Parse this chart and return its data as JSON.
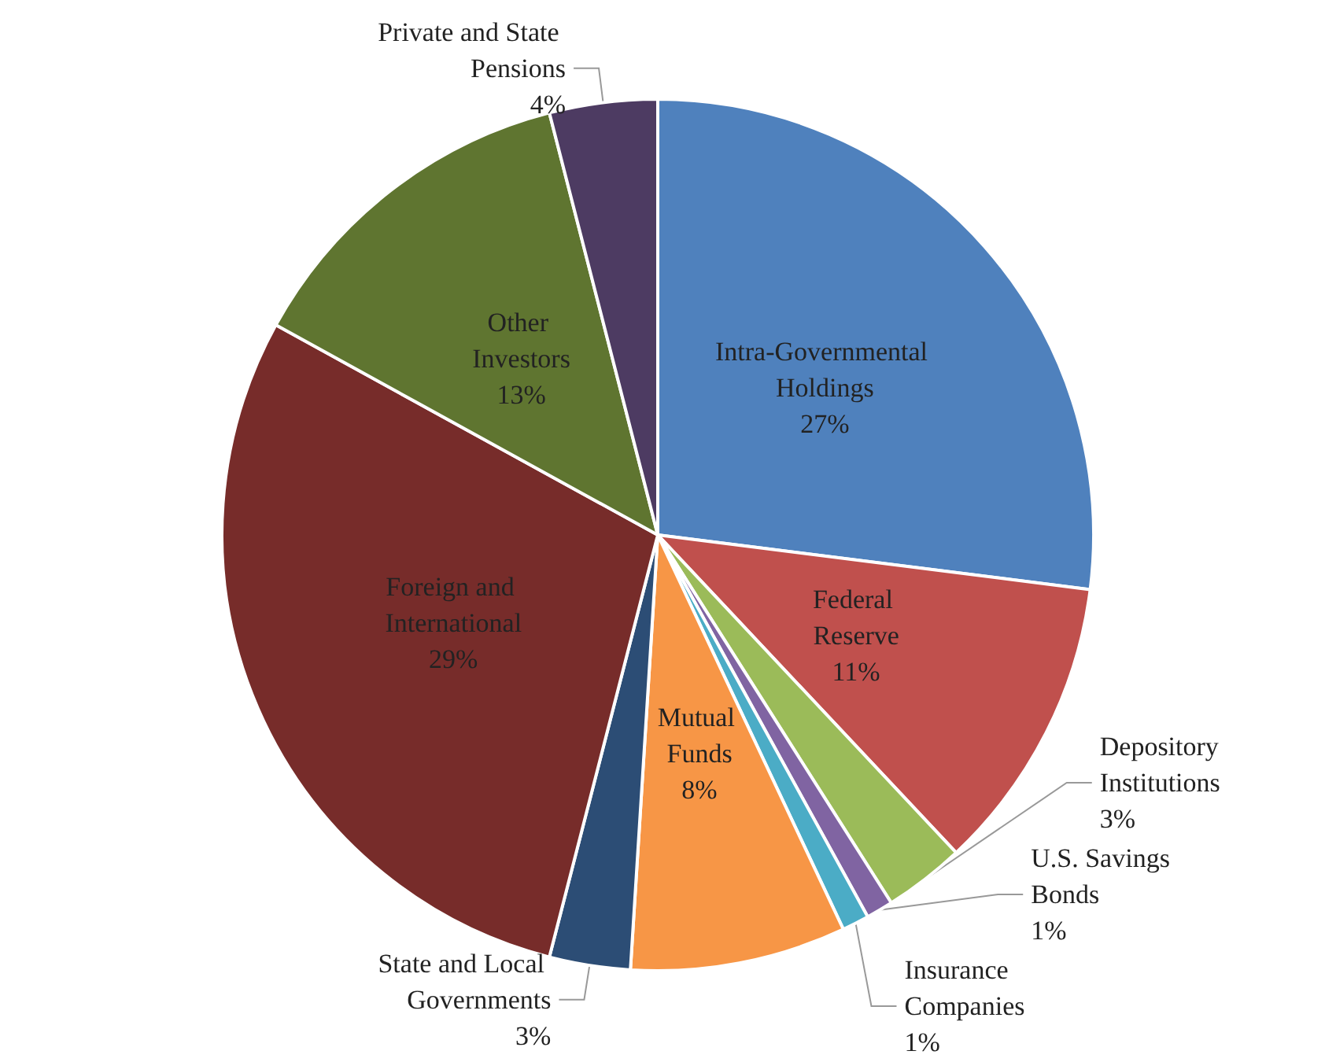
{
  "chart_data": {
    "type": "pie",
    "categories": [
      "Intra-Governmental Holdings",
      "Federal Reserve",
      "Depository Institutions",
      "U.S. Savings Bonds",
      "Insurance Companies",
      "Mutual Funds",
      "State and Local Governments",
      "Foreign and International",
      "Other Investors",
      "Private and State Pensions"
    ],
    "values": [
      27,
      11,
      3,
      1,
      1,
      8,
      3,
      29,
      13,
      4
    ],
    "colors": [
      "#4f81bd",
      "#c0504d",
      "#9bbb59",
      "#8064a2",
      "#4bacc6",
      "#f79646",
      "#2c4d75",
      "#772c2a",
      "#5f7530",
      "#4d3b62"
    ],
    "value_labels": [
      "27%",
      "11%",
      "3%",
      "1%",
      "1%",
      "8%",
      "3%",
      "29%",
      "13%",
      "4%"
    ],
    "legend": false
  }
}
